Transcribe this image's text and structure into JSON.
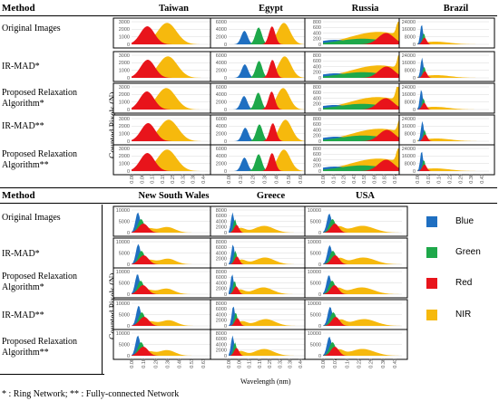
{
  "header": {
    "method_label": "Method"
  },
  "methods": [
    "Original Images",
    "IR-MAD*",
    "Proposed Relaxation Algorithm*",
    "IR-MAD**",
    "Proposed Relaxation Algorithm**"
  ],
  "ylabel": "Counted Pixels (N)",
  "xlabel": "Wavelength (nm)",
  "footnote": "* : Ring Network; ** : Fully-connected Network",
  "legend": [
    {
      "name": "Blue",
      "color": "#1f6fc1"
    },
    {
      "name": "Green",
      "color": "#1ea84a"
    },
    {
      "name": "Red",
      "color": "#e8141b"
    },
    {
      "name": "NIR",
      "color": "#f6b90d"
    }
  ],
  "chart_data": [
    {
      "type": "area",
      "region": "Taiwan",
      "yticks": [
        "3000",
        "2000",
        "1000",
        "0"
      ],
      "xticks": [
        "0.00",
        "0.06",
        "0.13",
        "0.19",
        "0.25",
        "0.32",
        "0.38",
        "0.44"
      ]
    },
    {
      "type": "area",
      "region": "Egypt",
      "yticks": [
        "6000",
        "4000",
        "2000",
        "0"
      ],
      "xticks": [
        "0.00",
        "0.10",
        "0.20",
        "0.30",
        "0.40",
        "0.50",
        "0.60"
      ]
    },
    {
      "type": "area",
      "region": "Russia",
      "yticks": [
        "800",
        "600",
        "400",
        "200",
        "0"
      ],
      "xticks": [
        "0.00",
        "0.14",
        "0.28",
        "0.41",
        "0.55",
        "0.69",
        "0.83",
        "0.97"
      ]
    },
    {
      "type": "area",
      "region": "Brazil",
      "yticks": [
        "24000",
        "16000",
        "8000",
        "0"
      ],
      "xticks": [
        "0.00",
        "0.07",
        "0.14",
        "0.22",
        "0.29",
        "0.36",
        "0.43"
      ]
    },
    {
      "type": "area",
      "region": "New South Wales",
      "yticks": [
        "10000",
        "5000",
        "0"
      ],
      "xticks": [
        "0.00",
        "0.10",
        "0.20",
        "0.30",
        "0.40",
        "0.51",
        "0.61"
      ]
    },
    {
      "type": "area",
      "region": "Greece",
      "yticks": [
        "8000",
        "6000",
        "4000",
        "2000",
        "0"
      ],
      "xticks": [
        "0.00",
        "0.06",
        "0.13",
        "0.19",
        "0.25",
        "0.32",
        "0.38",
        "0.44"
      ]
    },
    {
      "type": "area",
      "region": "USA",
      "yticks": [
        "10000",
        "5000",
        "0"
      ],
      "xticks": [
        "0.00",
        "0.07",
        "0.14",
        "0.22",
        "0.29",
        "0.36",
        "0.43"
      ]
    }
  ]
}
